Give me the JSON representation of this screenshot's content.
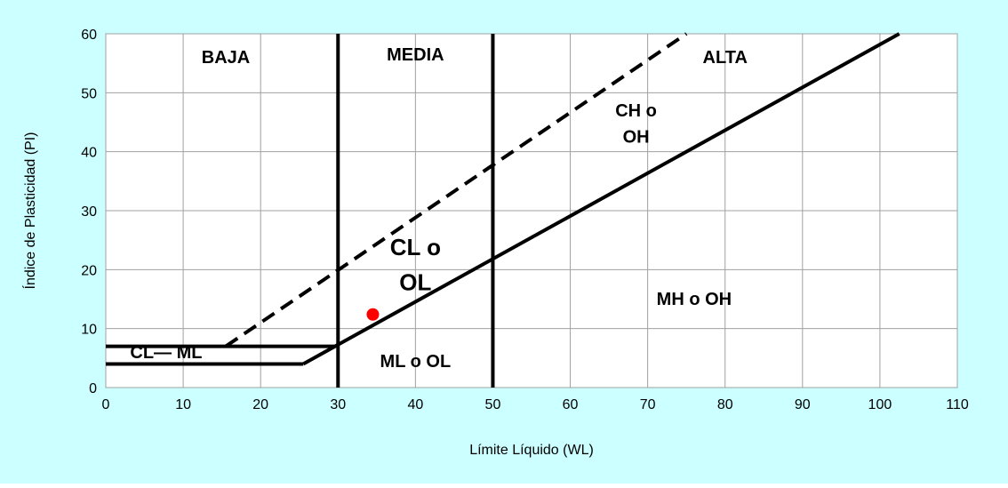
{
  "chart_data": {
    "type": "scatter",
    "title": "",
    "xlabel": "Límite Líquido (WL)",
    "ylabel": "Índice de Plasticidad (PI)",
    "xlim": [
      0,
      110
    ],
    "ylim": [
      0,
      60
    ],
    "x_ticks": [
      "0",
      "10",
      "20",
      "30",
      "40",
      "50",
      "60",
      "70",
      "80",
      "90",
      "100",
      "110"
    ],
    "y_ticks": [
      "0",
      "10",
      "20",
      "30",
      "40",
      "50",
      "60"
    ],
    "grid": true,
    "colors": {
      "background": "#ccffff",
      "plot_area": "#ffffff",
      "gridline": "#a0a0a0",
      "line": "#000000",
      "point": "#ff0000"
    },
    "lines": [
      {
        "name": "A-line",
        "style": "solid",
        "points": [
          [
            25.5,
            4
          ],
          [
            102.5,
            60
          ]
        ]
      },
      {
        "name": "U-line",
        "style": "dashed",
        "points": [
          [
            15.5,
            7
          ],
          [
            75,
            60
          ]
        ]
      },
      {
        "name": "CL-ML lower",
        "style": "solid",
        "points": [
          [
            0,
            4
          ],
          [
            25.5,
            4
          ]
        ]
      },
      {
        "name": "CL-ML upper",
        "style": "solid",
        "points": [
          [
            0,
            7
          ],
          [
            29.6,
            7
          ]
        ]
      },
      {
        "name": "LL 30",
        "style": "solid",
        "points": [
          [
            30,
            0
          ],
          [
            30,
            60
          ]
        ]
      },
      {
        "name": "LL 50",
        "style": "solid",
        "points": [
          [
            50,
            0
          ],
          [
            50,
            60
          ]
        ]
      }
    ],
    "points": [
      {
        "x": 34.5,
        "y": 12.4
      }
    ],
    "annotations": [
      {
        "id": "baja",
        "text": "BAJA",
        "x": 15.5,
        "y": 55,
        "size": "normal"
      },
      {
        "id": "media",
        "text": "MEDIA",
        "x": 40,
        "y": 55.5,
        "size": "normal"
      },
      {
        "id": "alta",
        "text": "ALTA",
        "x": 80,
        "y": 55,
        "size": "normal"
      },
      {
        "id": "ch",
        "text": "CH  o",
        "x": 68.5,
        "y": 46,
        "size": "normal"
      },
      {
        "id": "oh",
        "text": "OH",
        "x": 68.5,
        "y": 41.5,
        "size": "normal"
      },
      {
        "id": "cl",
        "text": "CL  o",
        "x": 40,
        "y": 22.5,
        "size": "big"
      },
      {
        "id": "ol",
        "text": "OL",
        "x": 40,
        "y": 16.5,
        "size": "big"
      },
      {
        "id": "mh",
        "text": "MH  o OH",
        "x": 76,
        "y": 14,
        "size": "normal"
      },
      {
        "id": "ml",
        "text": "ML  o  OL",
        "x": 40,
        "y": 3.5,
        "size": "normal"
      },
      {
        "id": "clml",
        "text": "CL— ML",
        "x": 7.8,
        "y": 5,
        "size": "normal"
      }
    ]
  }
}
